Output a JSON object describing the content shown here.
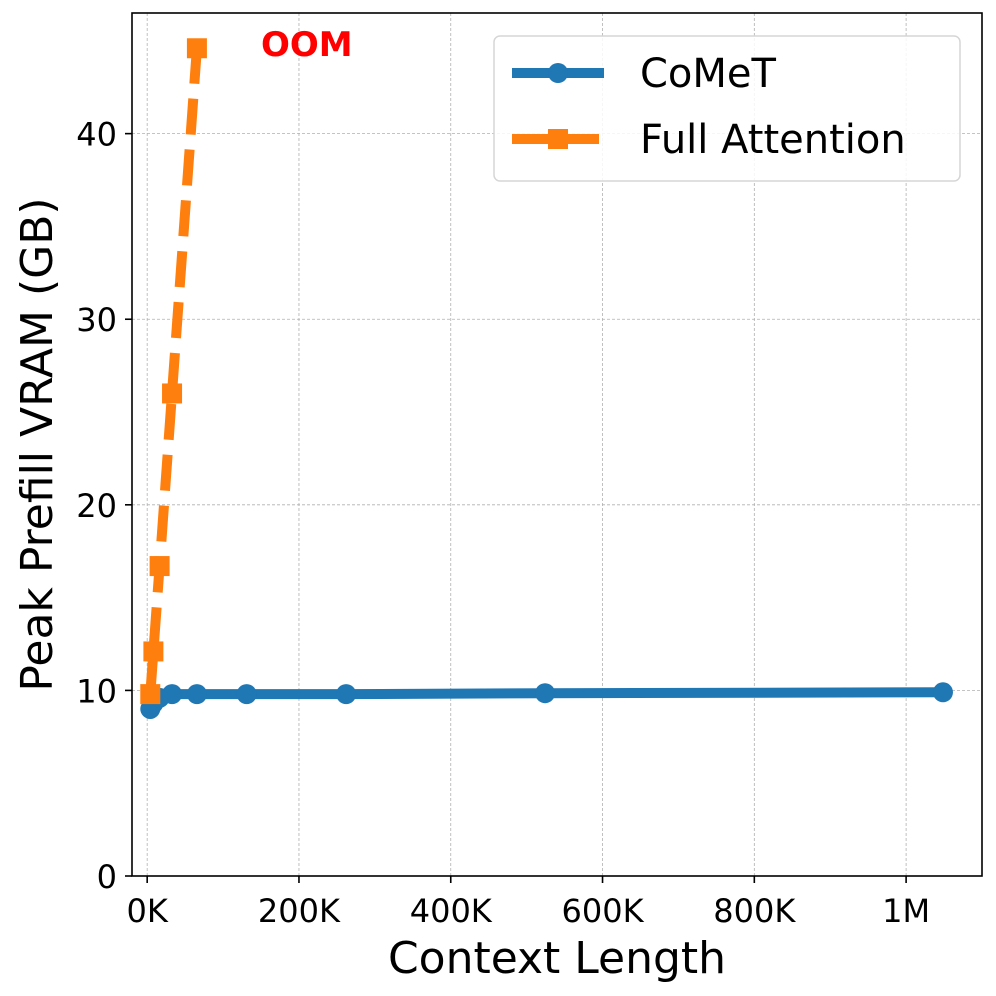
{
  "chart_data": {
    "type": "line",
    "title": "",
    "xlabel": "Context Length",
    "ylabel": "Peak Prefill VRAM (GB)",
    "xlim": [
      -20000,
      1100000
    ],
    "ylim": [
      0,
      46.5
    ],
    "xticks": [
      {
        "value": 0,
        "label": "0K"
      },
      {
        "value": 200000,
        "label": "200K"
      },
      {
        "value": 400000,
        "label": "400K"
      },
      {
        "value": 600000,
        "label": "600K"
      },
      {
        "value": 800000,
        "label": "800K"
      },
      {
        "value": 1000000,
        "label": "1M"
      }
    ],
    "yticks": [
      {
        "value": 0,
        "label": "0"
      },
      {
        "value": 10,
        "label": "10"
      },
      {
        "value": 20,
        "label": "20"
      },
      {
        "value": 30,
        "label": "30"
      },
      {
        "value": 40,
        "label": "40"
      }
    ],
    "grid": true,
    "legend_position": "top-right",
    "series": [
      {
        "name": "CoMeT",
        "color": "#1f77b4",
        "marker": "circle",
        "linestyle": "solid",
        "x": [
          4096,
          8192,
          16384,
          32768,
          65536,
          131072,
          262144,
          524288,
          1048576
        ],
        "y": [
          9.0,
          9.3,
          9.6,
          9.8,
          9.8,
          9.8,
          9.8,
          9.85,
          9.9
        ]
      },
      {
        "name": "Full Attention",
        "color": "#ff7f0e",
        "marker": "square",
        "linestyle": "dashed",
        "x": [
          4096,
          8192,
          16384,
          32768,
          65536
        ],
        "y": [
          9.8,
          12.1,
          16.7,
          26.0,
          44.6
        ]
      }
    ],
    "annotations": [
      {
        "text": "OOM",
        "x": 215000,
        "y": 44.5,
        "color": "#ff0000"
      }
    ]
  }
}
